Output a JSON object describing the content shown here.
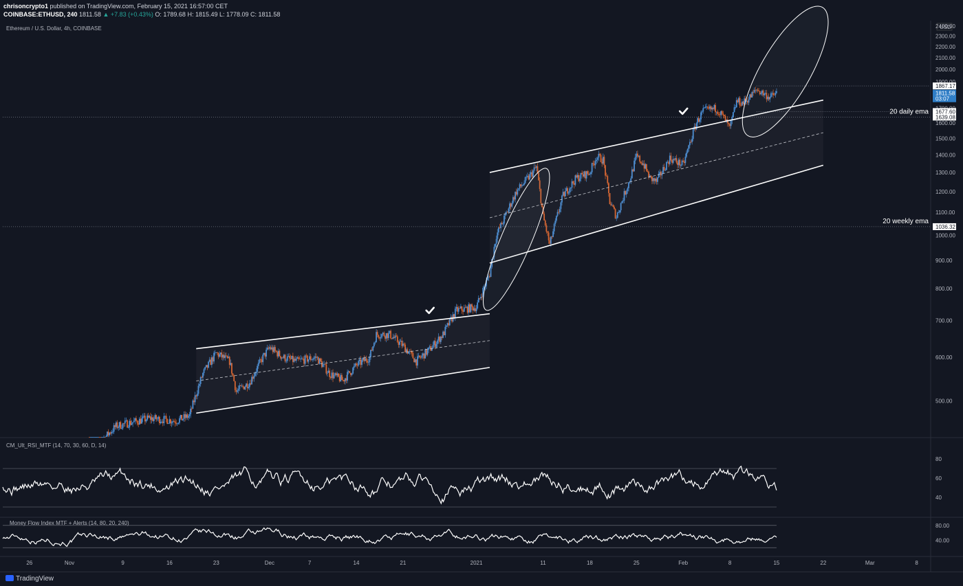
{
  "header": {
    "publisher": "chrisoncrypto1",
    "published_text": "published on TradingView.com, February 15, 2021 16:57:00 CET",
    "symbol": "COINBASE:ETHUSD, 240",
    "last": "1811.58",
    "change": "▲ +7.83 (+0.43%)",
    "ohlc": "O: 1789.68  H: 1815.49  L: 1778.09  C: 1811.58"
  },
  "footer": {
    "brand": "TradingView"
  },
  "chart_data": [
    {
      "type": "candlestick",
      "title": "Ethereum / U.S. Dollar, 4h, COINBASE",
      "currency": "USD",
      "ylim": [
        430,
        2440
      ],
      "y_ticks": [
        500,
        600,
        700,
        800,
        900,
        1000,
        1100,
        1200,
        1300,
        1400,
        1500,
        1600,
        1700,
        1800,
        1900,
        2000,
        2100,
        2200,
        2300,
        2400
      ],
      "x_ticks": [
        "26",
        "Nov",
        "9",
        "16",
        "23",
        "Dec",
        "7",
        "14",
        "21",
        "2021",
        "11",
        "18",
        "25",
        "Feb",
        "8",
        "15",
        "22",
        "Mar",
        "8"
      ],
      "x_range": [
        "2020-10-22",
        "2021-03-10"
      ],
      "close_path": [
        {
          "date": "2020-11-04",
          "close": 400
        },
        {
          "date": "2020-11-08",
          "close": 450
        },
        {
          "date": "2020-11-13",
          "close": 465
        },
        {
          "date": "2020-11-17",
          "close": 460
        },
        {
          "date": "2020-11-19",
          "close": 470
        },
        {
          "date": "2020-11-21",
          "close": 560
        },
        {
          "date": "2020-11-23",
          "close": 610
        },
        {
          "date": "2020-11-25",
          "close": 590
        },
        {
          "date": "2020-11-26",
          "close": 520
        },
        {
          "date": "2020-11-28",
          "close": 540
        },
        {
          "date": "2020-11-30",
          "close": 600
        },
        {
          "date": "2020-12-01",
          "close": 625
        },
        {
          "date": "2020-12-03",
          "close": 600
        },
        {
          "date": "2020-12-05",
          "close": 590
        },
        {
          "date": "2020-12-08",
          "close": 600
        },
        {
          "date": "2020-12-10",
          "close": 560
        },
        {
          "date": "2020-12-12",
          "close": 545
        },
        {
          "date": "2020-12-14",
          "close": 580
        },
        {
          "date": "2020-12-16",
          "close": 600
        },
        {
          "date": "2020-12-17",
          "close": 660
        },
        {
          "date": "2020-12-19",
          "close": 660
        },
        {
          "date": "2020-12-21",
          "close": 630
        },
        {
          "date": "2020-12-23",
          "close": 590
        },
        {
          "date": "2020-12-25",
          "close": 620
        },
        {
          "date": "2020-12-27",
          "close": 660
        },
        {
          "date": "2020-12-29",
          "close": 730
        },
        {
          "date": "2021-01-01",
          "close": 740
        },
        {
          "date": "2021-01-03",
          "close": 850
        },
        {
          "date": "2021-01-04",
          "close": 1000
        },
        {
          "date": "2021-01-05",
          "close": 1060
        },
        {
          "date": "2021-01-07",
          "close": 1200
        },
        {
          "date": "2021-01-09",
          "close": 1280
        },
        {
          "date": "2021-01-10",
          "close": 1330
        },
        {
          "date": "2021-01-11",
          "close": 1080
        },
        {
          "date": "2021-01-12",
          "close": 960
        },
        {
          "date": "2021-01-14",
          "close": 1180
        },
        {
          "date": "2021-01-16",
          "close": 1270
        },
        {
          "date": "2021-01-18",
          "close": 1300
        },
        {
          "date": "2021-01-19",
          "close": 1390
        },
        {
          "date": "2021-01-20",
          "close": 1370
        },
        {
          "date": "2021-01-21",
          "close": 1150
        },
        {
          "date": "2021-01-22",
          "close": 1080
        },
        {
          "date": "2021-01-24",
          "close": 1260
        },
        {
          "date": "2021-01-25",
          "close": 1390
        },
        {
          "date": "2021-01-26",
          "close": 1350
        },
        {
          "date": "2021-01-27",
          "close": 1270
        },
        {
          "date": "2021-01-28",
          "close": 1250
        },
        {
          "date": "2021-01-30",
          "close": 1380
        },
        {
          "date": "2021-02-01",
          "close": 1340
        },
        {
          "date": "2021-02-02",
          "close": 1470
        },
        {
          "date": "2021-02-03",
          "close": 1600
        },
        {
          "date": "2021-02-04",
          "close": 1680
        },
        {
          "date": "2021-02-06",
          "close": 1700
        },
        {
          "date": "2021-02-07",
          "close": 1640
        },
        {
          "date": "2021-02-08",
          "close": 1560
        },
        {
          "date": "2021-02-09",
          "close": 1750
        },
        {
          "date": "2021-02-10",
          "close": 1740
        },
        {
          "date": "2021-02-11",
          "close": 1780
        },
        {
          "date": "2021-02-12",
          "close": 1840
        },
        {
          "date": "2021-02-13",
          "close": 1810
        },
        {
          "date": "2021-02-14",
          "close": 1780
        },
        {
          "date": "2021-02-15",
          "close": 1811.58
        }
      ],
      "price_labels": [
        {
          "value": 1867.17,
          "text": "1867.17",
          "style": "white"
        },
        {
          "value": 1811.58,
          "text": "1811.58",
          "style": "blue"
        },
        {
          "value": 1770,
          "text": "03:07",
          "style": "blue"
        },
        {
          "value": 1677.6,
          "text": "1677.60",
          "style": "white"
        },
        {
          "value": 1639.08,
          "text": "1639.08",
          "style": "white"
        },
        {
          "value": 1036.32,
          "text": "1036.32",
          "style": "white"
        }
      ],
      "annotations": [
        {
          "text": "20 daily ema",
          "value": 1639.08
        },
        {
          "text": "20 weekly ema",
          "value": 1036.32
        }
      ],
      "channels": [
        {
          "start": {
            "date": "2020-11-20",
            "top": 622,
            "bottom": 475
          },
          "end": {
            "date": "2021-01-03",
            "top": 720,
            "bottom": 575
          }
        },
        {
          "start": {
            "date": "2021-01-03",
            "top": 1300,
            "bottom": 890
          },
          "end": {
            "date": "2021-02-22",
            "top": 1760,
            "bottom": 1340
          }
        }
      ]
    },
    {
      "type": "line",
      "title": "CM_Ult_RSI_MTF (14, 70, 30, 60, D, 14)",
      "ylim": [
        20,
        100
      ],
      "y_ticks": [
        40,
        60,
        80
      ],
      "levels": [
        70,
        30
      ]
    },
    {
      "type": "line",
      "title": "Money Flow Index MTF + Alerts (14, 80, 20, 240)",
      "ylim": [
        0,
        100
      ],
      "y_ticks": [
        "40.00",
        "80.00"
      ],
      "levels": [
        80,
        20
      ]
    }
  ]
}
